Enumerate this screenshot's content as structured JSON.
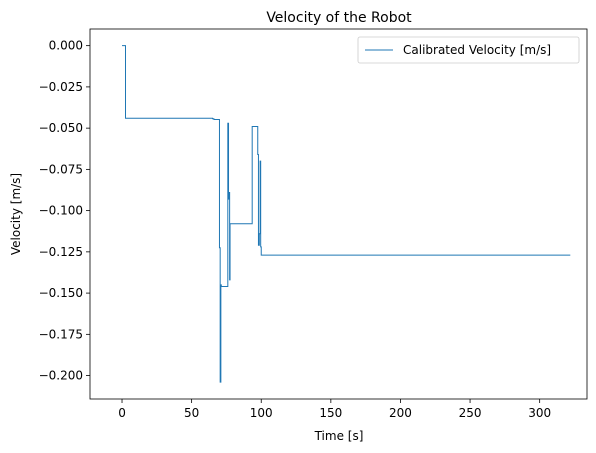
{
  "chart_data": {
    "type": "line",
    "title": "Velocity of the Robot",
    "xlabel": "Time [s]",
    "ylabel": "Velocity [m/s]",
    "xlim": [
      -23,
      334
    ],
    "ylim": [
      -0.2142,
      0.0101
    ],
    "xticks": [
      0,
      50,
      100,
      150,
      200,
      250,
      300
    ],
    "xtick_labels": [
      "0",
      "50",
      "100",
      "150",
      "200",
      "250",
      "300"
    ],
    "yticks": [
      0.0,
      -0.025,
      -0.05,
      -0.075,
      -0.1,
      -0.125,
      -0.15,
      -0.175,
      -0.2
    ],
    "ytick_labels": [
      "0.000",
      "−0.025",
      "−0.050",
      "−0.075",
      "−0.100",
      "−0.125",
      "−0.150",
      "−0.175",
      "−0.200"
    ],
    "grid": false,
    "legend_position": "upper-right",
    "color": "#1f77b4",
    "series": [
      {
        "name": "Calibrated Velocity [m/s]",
        "x": [
          0,
          2.5,
          2.5,
          3,
          3,
          65,
          65,
          66,
          66,
          70,
          70,
          70.5,
          70.5,
          71,
          71,
          71.3,
          71.3,
          72,
          72,
          76,
          76,
          76.5,
          76.5,
          77,
          77,
          77.3,
          77.3,
          77.6,
          77.6,
          78,
          78,
          78.4,
          78.4,
          93.5,
          93.5,
          94,
          94,
          97.5,
          97.5,
          98,
          98,
          98.6,
          98.6,
          99.2,
          99.2,
          99.6,
          99.6,
          100,
          100,
          100.6,
          100.6,
          322
        ],
        "y": [
          0.0,
          0.0,
          -0.044,
          -0.044,
          -0.044,
          -0.044,
          -0.0443,
          -0.0443,
          -0.0448,
          -0.0448,
          -0.1225,
          -0.1225,
          -0.204,
          -0.204,
          -0.145,
          -0.145,
          -0.146,
          -0.146,
          -0.146,
          -0.146,
          -0.047,
          -0.047,
          -0.093,
          -0.093,
          -0.089,
          -0.089,
          -0.142,
          -0.142,
          -0.108,
          -0.108,
          -0.108,
          -0.108,
          -0.108,
          -0.108,
          -0.049,
          -0.049,
          -0.049,
          -0.049,
          -0.066,
          -0.066,
          -0.121,
          -0.121,
          -0.114,
          -0.114,
          -0.07,
          -0.07,
          -0.122,
          -0.122,
          -0.127,
          -0.127,
          -0.127,
          -0.127
        ]
      }
    ]
  }
}
